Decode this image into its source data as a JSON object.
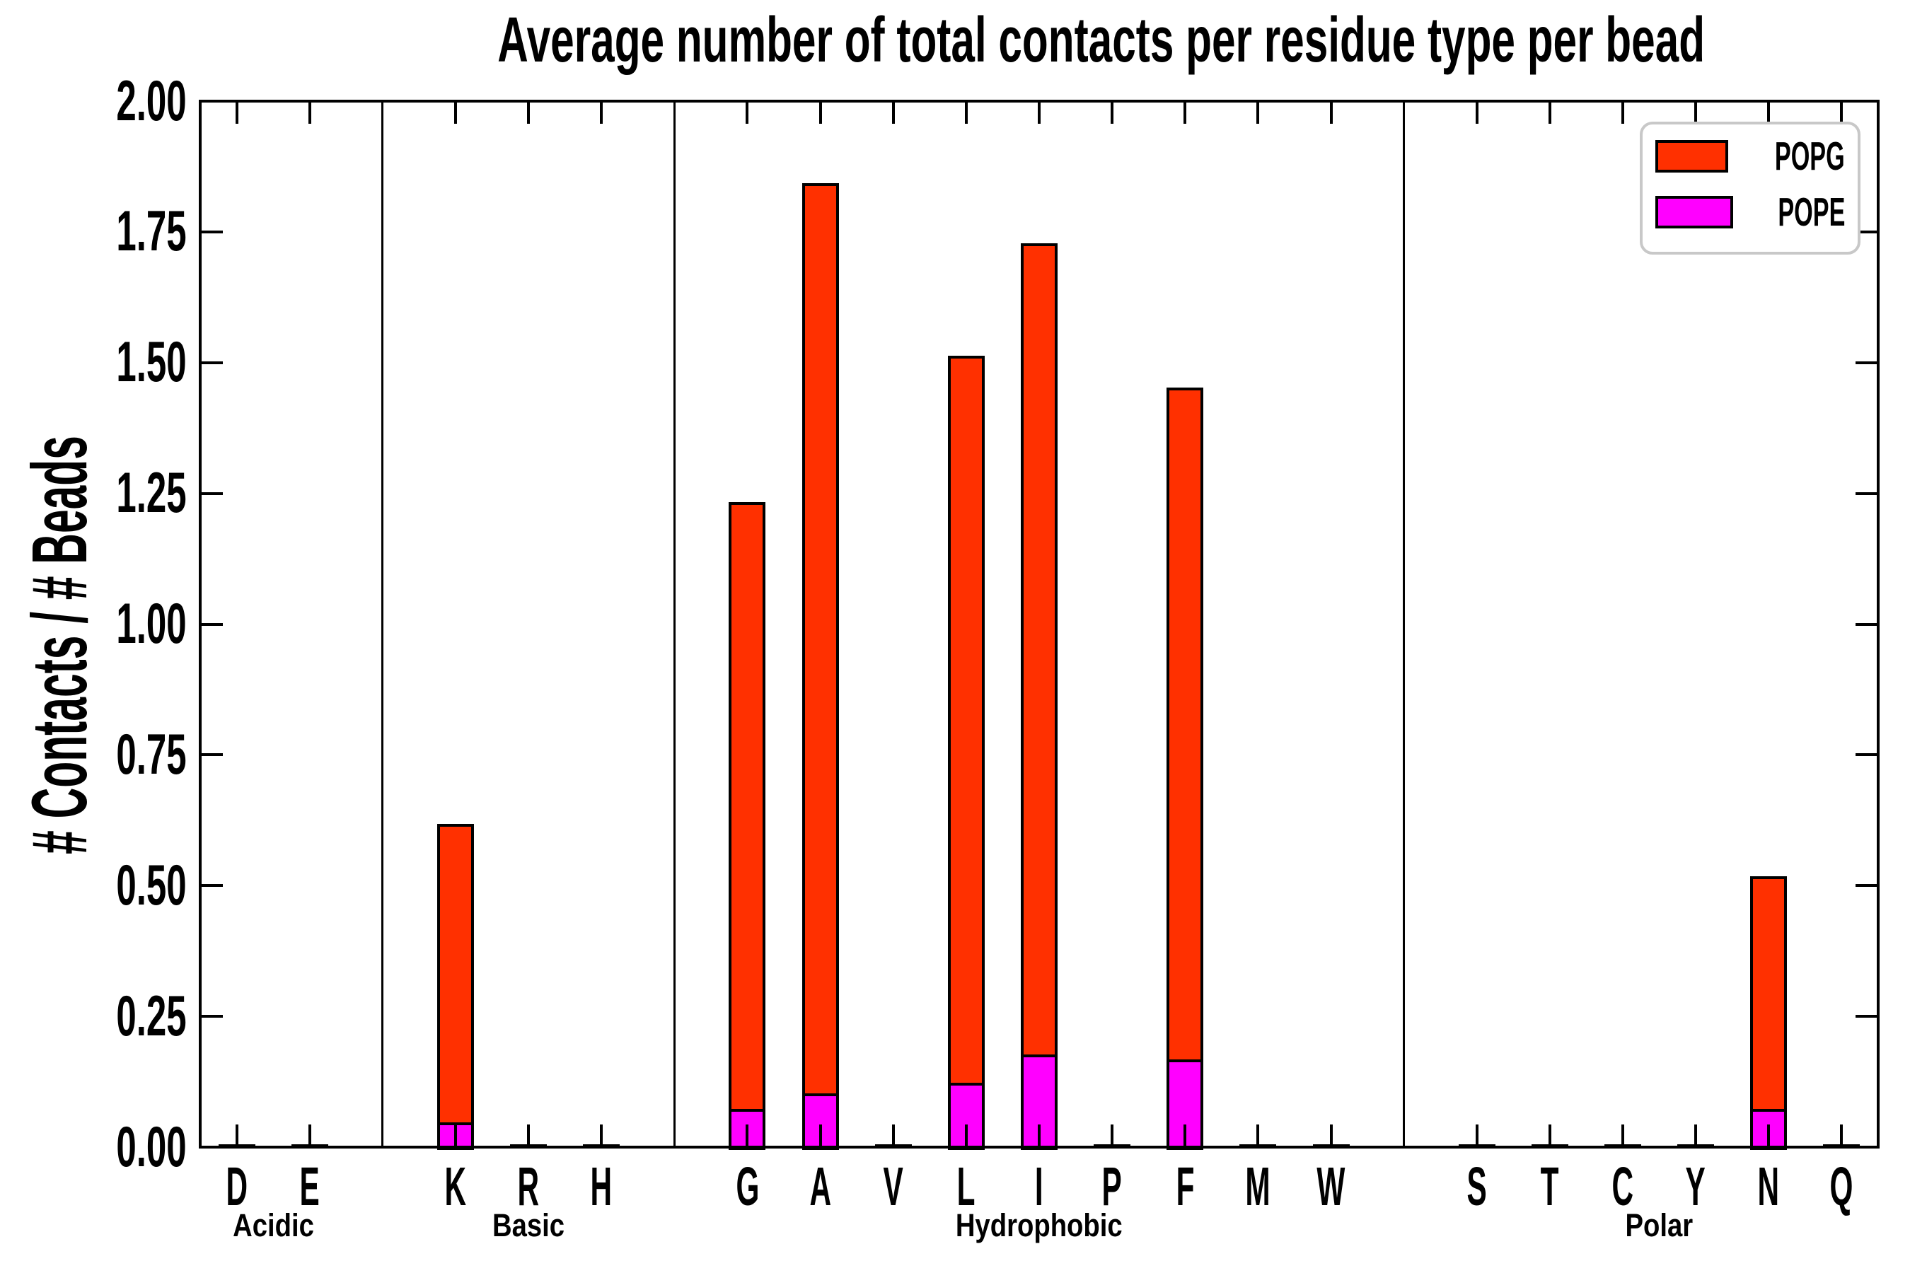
{
  "chart_data": {
    "type": "bar",
    "stacked": true,
    "title": "Average number of total contacts per residue type per bead",
    "xlabel": "",
    "ylabel": "# Contacts / # Beads",
    "ylim": [
      0,
      2.0
    ],
    "ytick_step": 0.25,
    "ytick_labels": [
      "0.00",
      "0.25",
      "0.50",
      "0.75",
      "1.00",
      "1.25",
      "1.50",
      "1.75",
      "2.00"
    ],
    "grid": false,
    "legend_position": "upper right",
    "series_order_bottom_to_top": [
      "POPE",
      "POPG"
    ],
    "groups": [
      {
        "label": "Acidic",
        "residues": [
          "D",
          "E"
        ],
        "POPE": [
          0,
          0
        ],
        "POPG": [
          0,
          0
        ]
      },
      {
        "label": "Basic",
        "residues": [
          "K",
          "R",
          "H"
        ],
        "POPE": [
          0.045,
          0,
          0
        ],
        "POPG": [
          0.57,
          0,
          0
        ]
      },
      {
        "label": "Hydrophobic",
        "residues": [
          "G",
          "A",
          "V",
          "L",
          "I",
          "P",
          "F",
          "M",
          "W"
        ],
        "POPE": [
          0.07,
          0.1,
          0,
          0.12,
          0.175,
          0,
          0.165,
          0,
          0
        ],
        "POPG": [
          1.16,
          1.74,
          0,
          1.39,
          1.55,
          0,
          1.285,
          0,
          0
        ]
      },
      {
        "label": "Polar",
        "residues": [
          "S",
          "T",
          "C",
          "Y",
          "N",
          "Q"
        ],
        "POPE": [
          0,
          0,
          0,
          0,
          0.07,
          0
        ],
        "POPG": [
          0,
          0,
          0,
          0,
          0.445,
          0
        ]
      }
    ]
  },
  "legend": {
    "items": [
      {
        "label": "POPG",
        "color": "#ff3000"
      },
      {
        "label": "POPE",
        "color": "#ff00ff"
      }
    ]
  },
  "colors": {
    "axis": "#000000",
    "background": "#ffffff",
    "legend_border": "#c8c8c8"
  }
}
